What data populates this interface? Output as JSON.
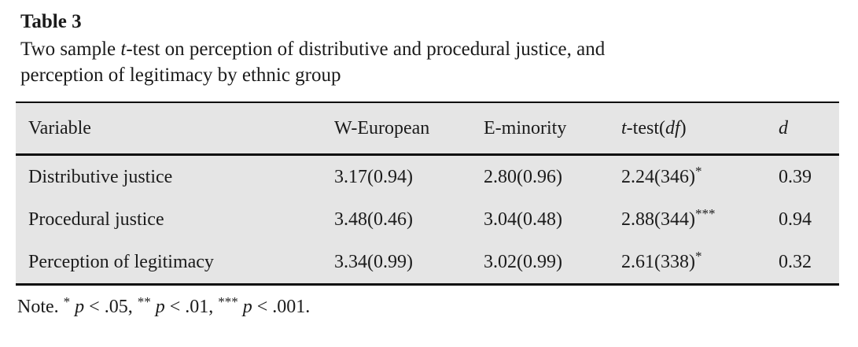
{
  "page": {
    "background": "#ffffff",
    "text_color": "#1b1b1b",
    "table_background": "#e5e5e5",
    "rule_color": "#0d0d0d"
  },
  "table": {
    "label": "Table 3",
    "caption": {
      "line1_pre": "Two sample ",
      "line1_italic": "t",
      "line1_post": "-test on perception of distributive and procedural justice, and",
      "line2": "perception of legitimacy by ethnic group"
    },
    "header": {
      "variable": "Variable",
      "w_european": "W-European",
      "e_minority": "E-minority",
      "ttest_t": "t",
      "ttest_mid": "-test(",
      "ttest_df": "df",
      "ttest_close": ")",
      "d": "d"
    },
    "rows": [
      {
        "variable": "Distributive justice",
        "w_european": "3.17(0.94)",
        "e_minority": "2.80(0.96)",
        "ttest": "2.24(346)",
        "ttest_sig": "*",
        "d": "0.39"
      },
      {
        "variable": "Procedural justice",
        "w_european": "3.48(0.46)",
        "e_minority": "3.04(0.48)",
        "ttest": "2.88(344)",
        "ttest_sig": "***",
        "d": "0.94"
      },
      {
        "variable": "Perception of legitimacy",
        "w_european": "3.34(0.99)",
        "e_minority": "3.02(0.99)",
        "ttest": "2.61(338)",
        "ttest_sig": "*",
        "d": "0.32"
      }
    ],
    "note": {
      "label": "Note.",
      "sig1": "*",
      "p": "p",
      "cond1": "< .05,",
      "sig2": "**",
      "cond2": "< .01,",
      "sig3": "***",
      "cond3": "< .001."
    }
  }
}
